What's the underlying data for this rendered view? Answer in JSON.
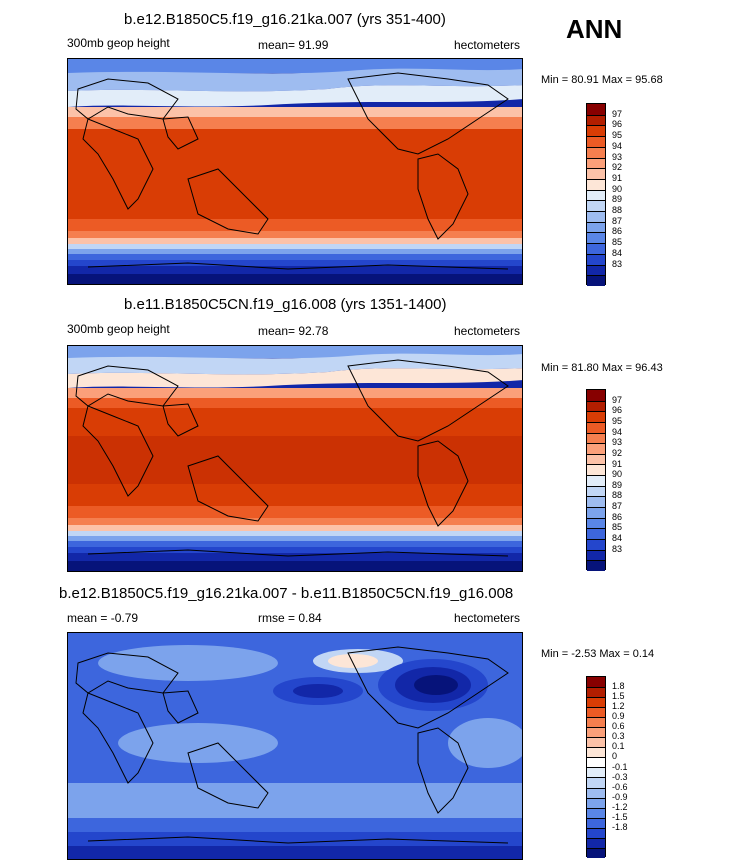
{
  "season": "ANN",
  "panels": [
    {
      "title": "b.e12.B1850C5.f19_g16.21ka.007 (yrs 351-400)",
      "left_label": "300mb geop height",
      "center_label": "mean=  91.99",
      "units": "hectometers",
      "minmax": "Min = 80.91 Max =  95.68",
      "colorbar": {
        "colors": [
          "#870000",
          "#b21e00",
          "#d93d05",
          "#ec5b25",
          "#f57f4f",
          "#fba07a",
          "#fcc2a8",
          "#fde6d7",
          "#e2edf9",
          "#c1d6f5",
          "#9ebcf0",
          "#7ca3ec",
          "#5a86e7",
          "#3d66dd",
          "#2446cc",
          "#1227a8",
          "#06137a"
        ],
        "labels": [
          "97",
          "96",
          "95",
          "94",
          "93",
          "92",
          "91",
          "90",
          "89",
          "88",
          "87",
          "86",
          "85",
          "84",
          "83"
        ]
      }
    },
    {
      "title": "b.e11.B1850C5CN.f19_g16.008 (yrs 1351-1400)",
      "left_label": "300mb geop height",
      "center_label": "mean=  92.78",
      "units": "hectometers",
      "minmax": "Min = 81.80 Max =  96.43",
      "colorbar": {
        "colors": [
          "#870000",
          "#b21e00",
          "#d93d05",
          "#ec5b25",
          "#f57f4f",
          "#fba07a",
          "#fcc2a8",
          "#fde6d7",
          "#e2edf9",
          "#c1d6f5",
          "#9ebcf0",
          "#7ca3ec",
          "#5a86e7",
          "#3d66dd",
          "#2446cc",
          "#1227a8",
          "#06137a"
        ],
        "labels": [
          "97",
          "96",
          "95",
          "94",
          "93",
          "92",
          "91",
          "90",
          "89",
          "88",
          "87",
          "86",
          "85",
          "84",
          "83"
        ]
      }
    },
    {
      "title": "b.e12.B1850C5.f19_g16.21ka.007 - b.e11.B1850C5CN.f19_g16.008",
      "left_label": "mean = -0.79",
      "center_label": "rmse =  0.84",
      "units": "hectometers",
      "minmax": "Min = -2.53 Max =  0.14",
      "colorbar": {
        "colors": [
          "#870000",
          "#b21e00",
          "#d93d05",
          "#ec5b25",
          "#f57f4f",
          "#fba07a",
          "#fcc2a8",
          "#fde6d7",
          "#ffffff",
          "#e2edf9",
          "#c1d6f5",
          "#9ebcf0",
          "#7ca3ec",
          "#5a86e7",
          "#3d66dd",
          "#2446cc",
          "#1227a8",
          "#06137a"
        ],
        "labels": [
          "1.8",
          "1.5",
          "1.2",
          "0.9",
          "0.6",
          "0.3",
          "0.1",
          "0",
          "-0.1",
          "-0.3",
          "-0.6",
          "-0.9",
          "-1.2",
          "-1.5",
          "-1.8"
        ]
      }
    }
  ]
}
